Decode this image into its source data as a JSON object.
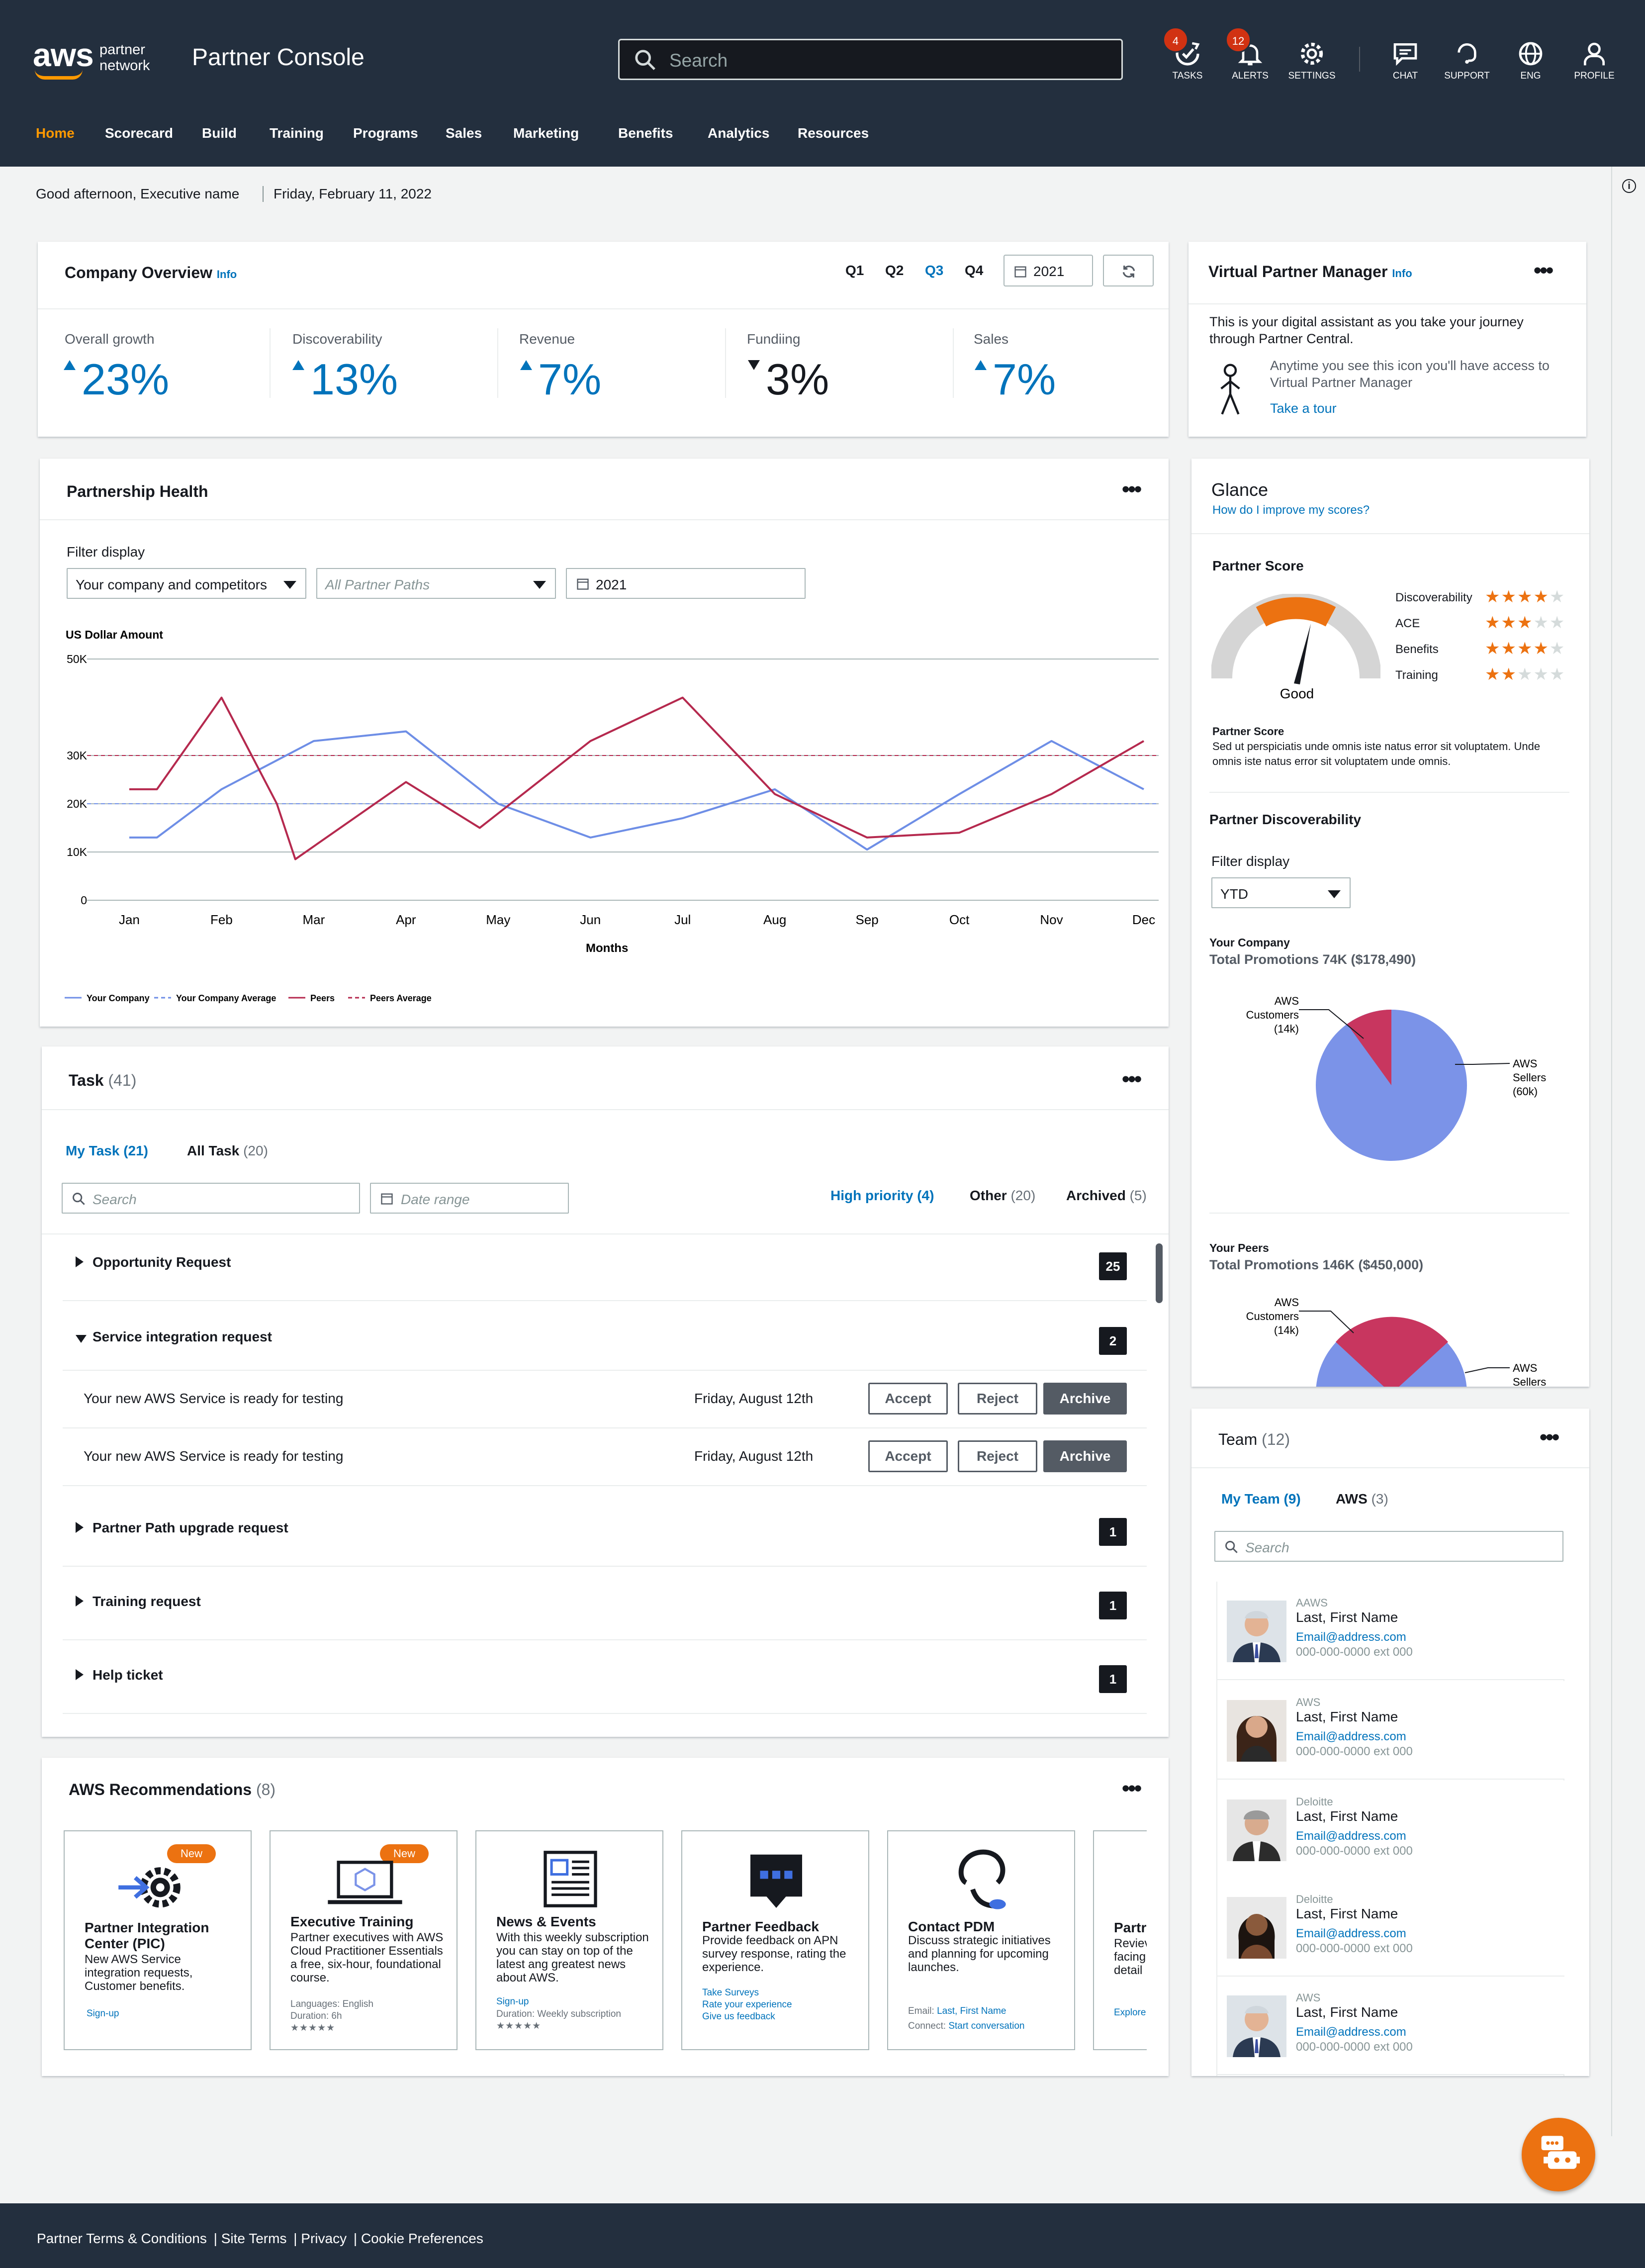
{
  "header": {
    "brand_aws": "aws",
    "brand_sub1": "partner",
    "brand_sub2": "network",
    "title": "Partner Console",
    "search_placeholder": "Search",
    "utilities": [
      {
        "label": "TASKS",
        "badge": "4",
        "icon": "tasks-icon"
      },
      {
        "label": "ALERTS",
        "badge": "12",
        "icon": "bell-icon"
      },
      {
        "label": "SETTINGS",
        "badge": "",
        "icon": "gear-icon"
      },
      {
        "label": "CHAT",
        "badge": "",
        "icon": "chat-icon"
      },
      {
        "label": "SUPPORT",
        "badge": "",
        "icon": "support-icon"
      },
      {
        "label": "ENG",
        "badge": "",
        "icon": "globe-icon"
      },
      {
        "label": "PROFILE",
        "badge": "",
        "icon": "user-icon"
      }
    ],
    "nav": [
      "Home",
      "Scorecard",
      "Build",
      "Training",
      "Programs",
      "Sales",
      "Marketing",
      "Benefits",
      "Analytics",
      "Resources"
    ],
    "nav_active": "Home"
  },
  "greeting": {
    "text": "Good afternoon, Executive name",
    "date": "Friday, February 11, 2022"
  },
  "company_overview": {
    "title": "Company Overview",
    "info": "Info",
    "quarters": [
      "Q1",
      "Q2",
      "Q3",
      "Q4"
    ],
    "active_quarter": "Q3",
    "year": "2021",
    "metrics": [
      {
        "label": "Overall growth",
        "value": "23%",
        "trend": "up"
      },
      {
        "label": "Discoverability",
        "value": "13%",
        "trend": "up"
      },
      {
        "label": "Revenue",
        "value": "7%",
        "trend": "up"
      },
      {
        "label": "Fundiing",
        "value": "3%",
        "trend": "down"
      },
      {
        "label": "Sales",
        "value": "7%",
        "trend": "up"
      }
    ]
  },
  "virtual_pm": {
    "title": "Virtual Partner Manager",
    "info": "Info",
    "intro": "This is your digital assistant as you take your journey through Partner Central.",
    "hint": "Anytime you see this icon you'll have access to Virtual Partner Manager",
    "tour": "Take a tour"
  },
  "partnership_health": {
    "title": "Partnership Health",
    "filter_label": "Filter display",
    "filter_company": "Your company and competitors",
    "filter_paths": "All Partner Paths",
    "filter_year": "2021",
    "colors": {
      "company": "#6e8ee6",
      "peers": "#b5294e"
    }
  },
  "chart_data": {
    "type": "line",
    "title": "",
    "ylabel": "US Dollar Amount",
    "xlabel": "Months",
    "ylim": [
      0,
      50000
    ],
    "y_ticks": [
      "0",
      "10K",
      "20K",
      "30K",
      "50K"
    ],
    "categories": [
      "Jan",
      "Feb",
      "Mar",
      "Apr",
      "May",
      "Jun",
      "Jul",
      "Aug",
      "Sep",
      "Oct",
      "Nov",
      "Dec"
    ],
    "series": [
      {
        "name": "Your Company",
        "values": [
          13000,
          13000,
          23000,
          33000,
          35000,
          20000,
          13000,
          17000,
          23000,
          10500,
          22000,
          33000,
          23000
        ],
        "x": [
          0,
          0.3,
          1,
          2,
          3,
          4,
          5,
          6,
          7,
          8,
          9,
          10,
          11
        ]
      },
      {
        "name": "Peers",
        "values": [
          23000,
          23000,
          42000,
          20000,
          8500,
          24500,
          15000,
          33000,
          42000,
          22000,
          13000,
          14000,
          22000,
          33000
        ],
        "x": [
          0,
          0.3,
          1,
          1.6,
          1.8,
          3,
          3.8,
          5,
          6,
          7,
          8,
          9,
          10,
          11
        ]
      }
    ],
    "averages": [
      {
        "name": "Your Company Average",
        "value": 20000
      },
      {
        "name": "Peers Average",
        "value": 30000
      }
    ],
    "legend": [
      "Your Company",
      "Your Company Average",
      "Peers",
      "Peers Average"
    ],
    "grid": true
  },
  "tasks": {
    "title": "Task",
    "count": "(41)",
    "tabs": [
      {
        "label": "My Task",
        "count": "(21)"
      },
      {
        "label": "All Task",
        "count": "(20)"
      }
    ],
    "search_placeholder": "Search",
    "date_placeholder": "Date range",
    "filters": [
      {
        "label": "High priority",
        "count": "(4)"
      },
      {
        "label": "Other",
        "count": "(20)"
      },
      {
        "label": "Archived",
        "count": "(5)"
      }
    ],
    "groups": [
      {
        "label": "Opportunity Request",
        "count": "25"
      },
      {
        "label": "Service integration request",
        "count": "2"
      },
      {
        "label": "Partner Path upgrade request",
        "count": "1"
      },
      {
        "label": "Training request",
        "count": "1"
      },
      {
        "label": "Help ticket",
        "count": "1"
      }
    ],
    "items": [
      {
        "text": "Your new AWS Service is ready for testing",
        "date": "Friday, August 12th"
      },
      {
        "text": "Your new AWS Service is ready for testing",
        "date": "Friday, August 12th"
      }
    ],
    "accept": "Accept",
    "reject": "Reject",
    "archive": "Archive"
  },
  "recommendations": {
    "title": "AWS Recommendations",
    "count": "(8)",
    "new_label": "New",
    "cards": [
      {
        "title": "Partner Integration Center (PIC)",
        "desc": "New AWS Service integration requests, Customer benefits.",
        "link": "Sign-up"
      },
      {
        "title": "Executive Training",
        "desc": "Partner executives with AWS Cloud Practitioner Essentials a free, six-hour, foundational course.",
        "meta1": "Languages: English",
        "meta2": "Duration: 6h",
        "stars": "★★★★★"
      },
      {
        "title": "News & Events",
        "desc": "With this weekly subscription you can stay on top of the latest ang greatest news about AWS.",
        "link": "Sign-up",
        "meta2": "Duration: Weekly subscription",
        "stars": "★★★★★"
      },
      {
        "title": "Partner Feedback",
        "desc": "Provide feedback on APN survey response, rating the experience.",
        "links": [
          "Take Surveys",
          "Rate your experience",
          "Give us feedback"
        ]
      },
      {
        "title": "Contact PDM",
        "desc": "Discuss strategic initiatives and planning for upcoming launches.",
        "email_label": "Email:",
        "email_name": "Last, First Name",
        "connect_label": "Connect:",
        "connect_link": "Start conversation"
      },
      {
        "title": "Partr",
        "desc": "Reviev facing detail",
        "link": "Explore"
      }
    ]
  },
  "glance": {
    "title": "Glance",
    "improve": "How do I improve my scores?",
    "score_title": "Partner Score",
    "gauge_label": "Good",
    "ratings": [
      {
        "label": "Discoverability",
        "stars": 4
      },
      {
        "label": "ACE",
        "stars": 3
      },
      {
        "label": "Benefits",
        "stars": 4
      },
      {
        "label": "Training",
        "stars": 2
      }
    ],
    "score_note_title": "Partner Score",
    "score_note": "Sed ut perspiciatis unde omnis iste natus error sit voluptatem. Unde omnis iste natus error sit voluptatem unde omnis.",
    "disc_title": "Partner Discoverability",
    "filter_label": "Filter display",
    "filter_value": "YTD",
    "company_label": "Your Company",
    "company_total": "Total Promotions 74K ($178,490)",
    "company_pie": [
      {
        "name": "AWS Customers (14k)",
        "value": 14
      },
      {
        "name": "AWS Sellers (60k)",
        "value": 60
      }
    ],
    "peers_label": "Your Peers",
    "peers_total": "Total Promotions 146K ($450,000)",
    "peers_pie_labels": [
      "AWS Customers (14k)",
      "AWS Sellers"
    ],
    "colors": {
      "sellers": "#7b93e8",
      "customers": "#c8365f",
      "gauge_good": "#ec7211",
      "star_on": "#ec7211"
    }
  },
  "team": {
    "title": "Team",
    "count": "(12)",
    "tabs": [
      {
        "label": "My Team",
        "count": "(9)"
      },
      {
        "label": "AWS",
        "count": "(3)"
      }
    ],
    "search_placeholder": "Search",
    "members": [
      {
        "org": "AAWS",
        "name": "Last, First Name",
        "email": "Email@address.com",
        "phone": "000-000-0000 ext 000"
      },
      {
        "org": "AWS",
        "name": "Last, First Name",
        "email": "Email@address.com",
        "phone": "000-000-0000 ext 000"
      },
      {
        "org": "Deloitte",
        "name": "Last, First Name",
        "email": "Email@address.com",
        "phone": "000-000-0000 ext 000"
      },
      {
        "org": "Deloitte",
        "name": "Last, First Name",
        "email": "Email@address.com",
        "phone": "000-000-0000 ext 000"
      },
      {
        "org": "AWS",
        "name": "Last, First Name",
        "email": "Email@address.com",
        "phone": "000-000-0000 ext 000"
      }
    ]
  },
  "footer": [
    "Partner Terms & Conditions",
    "Site Terms",
    "Privacy",
    "Cookie Preferences"
  ]
}
